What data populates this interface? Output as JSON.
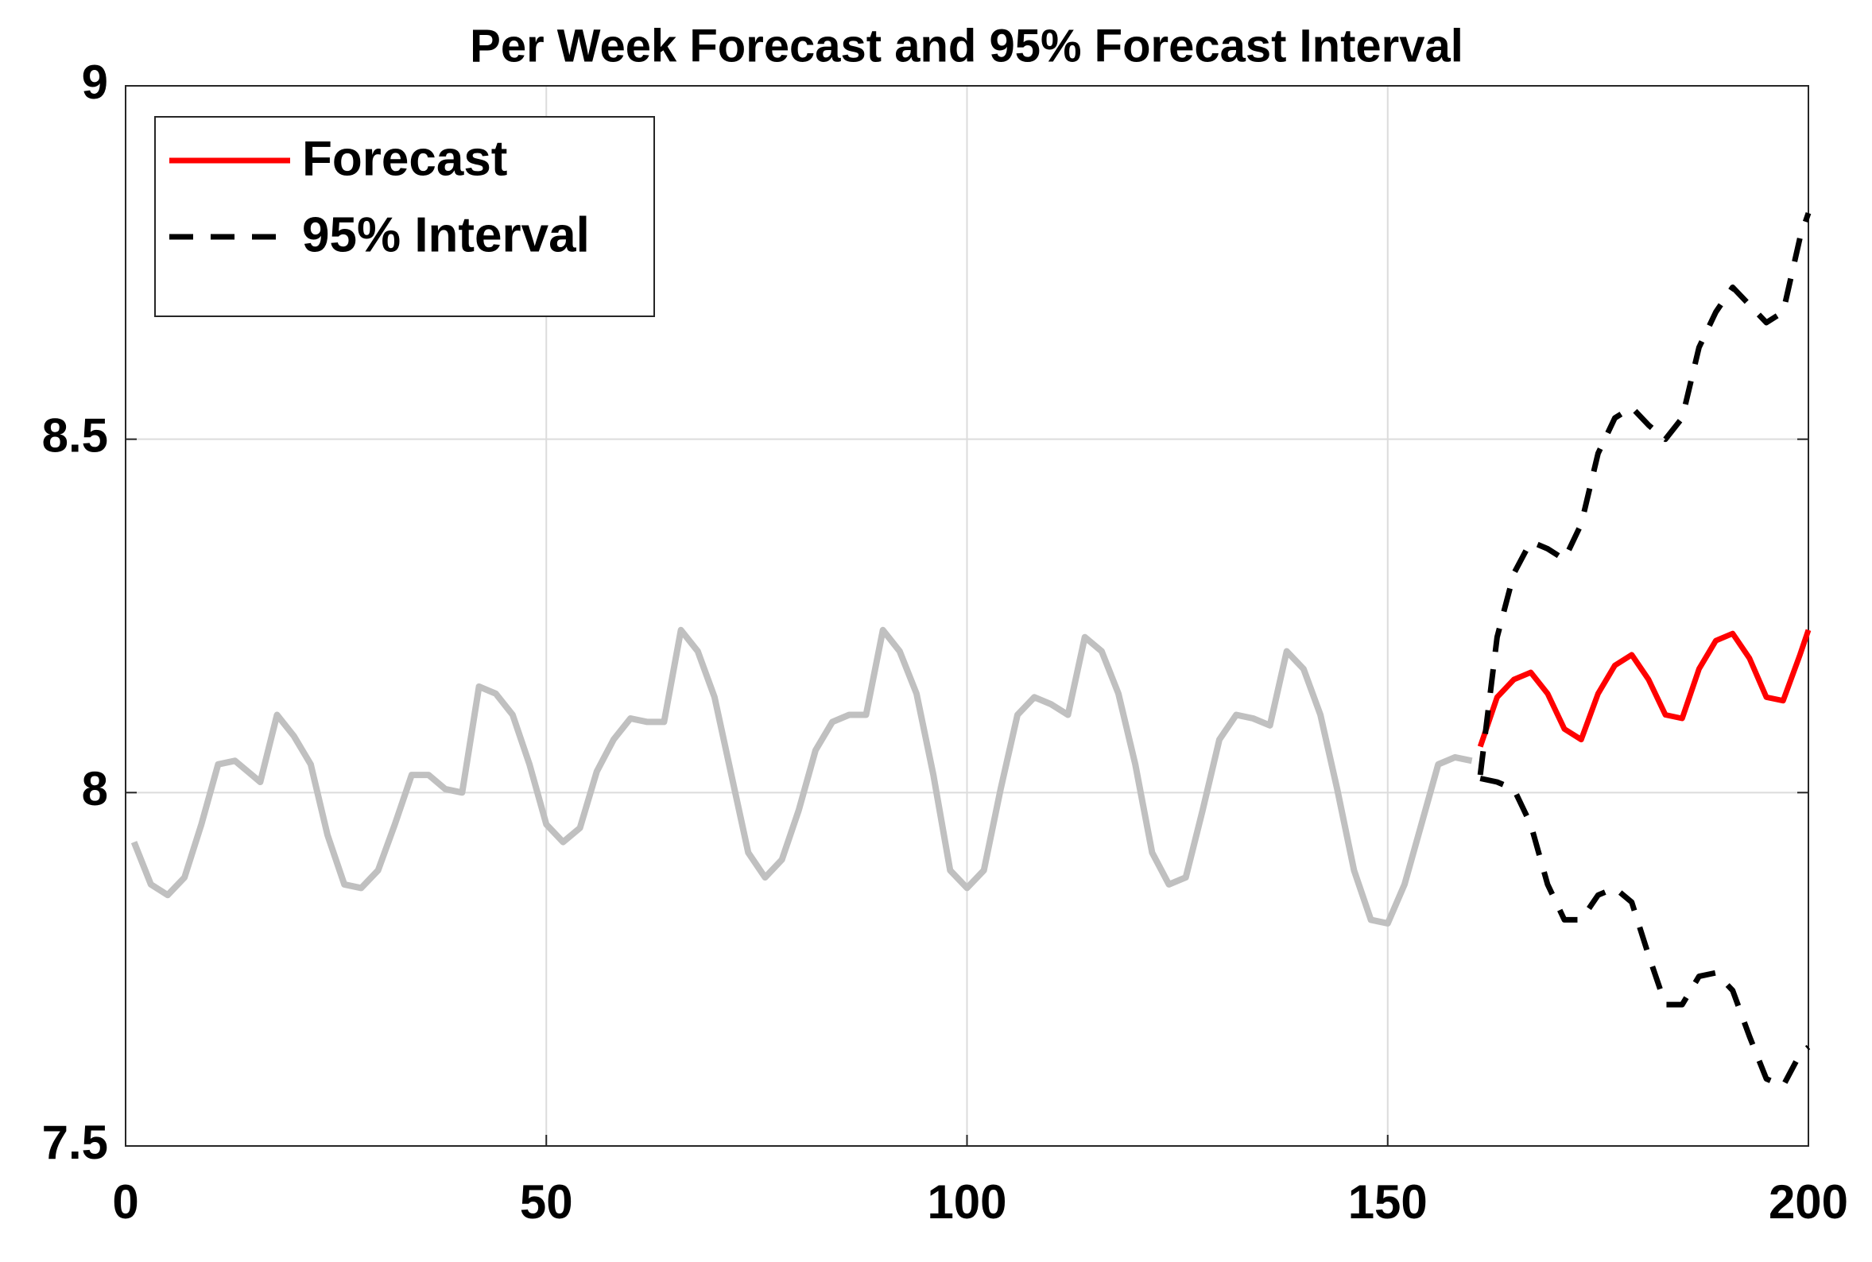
{
  "chart_data": {
    "type": "line",
    "title": "Per Week Forecast and 95% Forecast Interval",
    "xlim": [
      0,
      200
    ],
    "xticks": [
      0,
      50,
      100,
      150,
      200
    ],
    "ylim": [
      7.5,
      9
    ],
    "yticks": [
      7.5,
      8,
      8.5,
      9
    ],
    "grid": true,
    "legend": "upper left",
    "series": [
      {
        "color": "#c0c0c0",
        "linestyle": "solid",
        "x": [
          1,
          3,
          5,
          7,
          9,
          11,
          13,
          15,
          16,
          18,
          20,
          22,
          24,
          26,
          28,
          30,
          32,
          34,
          36,
          38,
          40,
          42,
          44,
          46,
          48,
          50,
          52,
          54,
          56,
          58,
          60,
          62,
          64,
          66,
          68,
          70,
          72,
          74,
          76,
          78,
          80,
          82,
          84,
          86,
          88,
          90,
          92,
          94,
          96,
          98,
          100,
          102,
          104,
          106,
          108,
          110,
          112,
          114,
          116,
          118,
          120,
          122,
          124,
          126,
          128,
          130,
          132,
          134,
          136,
          138,
          140,
          142,
          144,
          146,
          148,
          150,
          152,
          154,
          156,
          158,
          160
        ],
        "values": [
          7.93,
          7.87,
          7.855,
          7.88,
          7.955,
          8.04,
          8.045,
          8.025,
          8.015,
          8.11,
          8.08,
          8.04,
          7.94,
          7.87,
          7.865,
          7.89,
          7.955,
          8.025,
          8.025,
          8.005,
          8.0,
          8.15,
          8.14,
          8.11,
          8.04,
          7.955,
          7.93,
          7.95,
          8.03,
          8.075,
          8.105,
          8.1,
          8.1,
          8.23,
          8.2,
          8.135,
          8.025,
          7.915,
          7.88,
          7.905,
          7.975,
          8.06,
          8.1,
          8.11,
          8.11,
          8.23,
          8.2,
          8.14,
          8.025,
          7.89,
          7.865,
          7.89,
          8.005,
          8.11,
          8.135,
          8.125,
          8.11,
          8.22,
          8.2,
          8.14,
          8.04,
          7.915,
          7.87,
          7.88,
          7.975,
          8.075,
          8.11,
          8.105,
          8.095,
          8.2,
          8.175,
          8.11,
          8.005,
          7.89,
          7.82,
          7.815,
          7.87,
          7.955,
          8.04,
          8.05,
          8.045
        ]
      },
      {
        "name": "Forecast",
        "color": "#ff0000",
        "linestyle": "solid",
        "x": [
          161,
          163,
          165,
          167,
          169,
          171,
          173,
          175,
          177,
          179,
          181,
          183,
          185,
          187,
          189,
          191,
          193,
          195,
          197,
          199,
          200
        ],
        "values": [
          8.065,
          8.135,
          8.16,
          8.17,
          8.14,
          8.09,
          8.075,
          8.14,
          8.18,
          8.195,
          8.16,
          8.11,
          8.105,
          8.175,
          8.215,
          8.225,
          8.19,
          8.135,
          8.13,
          8.195,
          8.23
        ]
      },
      {
        "name": "95% Interval",
        "color": "#000000",
        "linestyle": "dashed",
        "x": [
          161,
          163,
          165,
          167,
          169,
          171,
          173,
          175,
          177,
          179,
          181,
          183,
          185,
          187,
          189,
          191,
          193,
          195,
          197,
          199,
          200
        ],
        "values": [
          8.025,
          8.22,
          8.31,
          8.355,
          8.345,
          8.33,
          8.38,
          8.48,
          8.53,
          8.545,
          8.52,
          8.5,
          8.53,
          8.63,
          8.68,
          8.715,
          8.69,
          8.665,
          8.68,
          8.785,
          8.82
        ]
      },
      {
        "color": "#000000",
        "linestyle": "dashed",
        "x": [
          161,
          163,
          165,
          167,
          169,
          171,
          173,
          175,
          177,
          179,
          181,
          183,
          185,
          187,
          189,
          191,
          193,
          195,
          197,
          199,
          200
        ],
        "values": [
          8.02,
          8.015,
          8.005,
          7.955,
          7.87,
          7.82,
          7.82,
          7.855,
          7.865,
          7.845,
          7.77,
          7.7,
          7.7,
          7.74,
          7.745,
          7.72,
          7.655,
          7.595,
          7.585,
          7.63,
          7.64
        ]
      }
    ]
  }
}
